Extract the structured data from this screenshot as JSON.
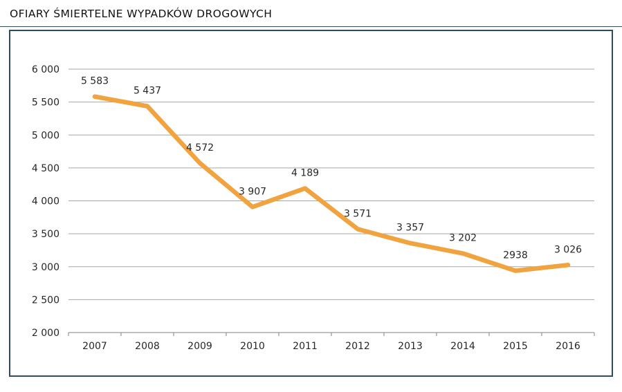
{
  "header": {
    "title": "OFIARY ŚMIERTELNE WYPADKÓW DROGOWYCH"
  },
  "chart_data": {
    "type": "line",
    "title": "OFIARY ŚMIERTELNE WYPADKÓW DROGOWYCH",
    "categories": [
      "2007",
      "2008",
      "2009",
      "2010",
      "2011",
      "2012",
      "2013",
      "2014",
      "2015",
      "2016"
    ],
    "values": [
      5583,
      5437,
      4572,
      3907,
      4189,
      3571,
      3357,
      3202,
      2938,
      3026
    ],
    "point_labels": [
      "5 583",
      "5 437",
      "4 572",
      "3 907",
      "4 189",
      "3 571",
      "3 357",
      "3 202",
      "2938",
      "3 026"
    ],
    "xlabel": "",
    "ylabel": "",
    "ylim": [
      2000,
      6000
    ],
    "y_tick_step": 500,
    "y_tick_labels": [
      "2 000",
      "2 500",
      "3 000",
      "3 500",
      "4 000",
      "4 500",
      "5 000",
      "5 500",
      "6 000"
    ],
    "grid": "horizontal-only",
    "legend": "none",
    "line_color": "#F0A33E",
    "styles": {
      "frame_border": "#2E4B59",
      "title_rule": "#2E4B59",
      "gridline": "#A6A6A6",
      "axis": "#808080",
      "label_color": "#262626",
      "title_color": "#111111",
      "background": "#FFFFFF"
    }
  }
}
